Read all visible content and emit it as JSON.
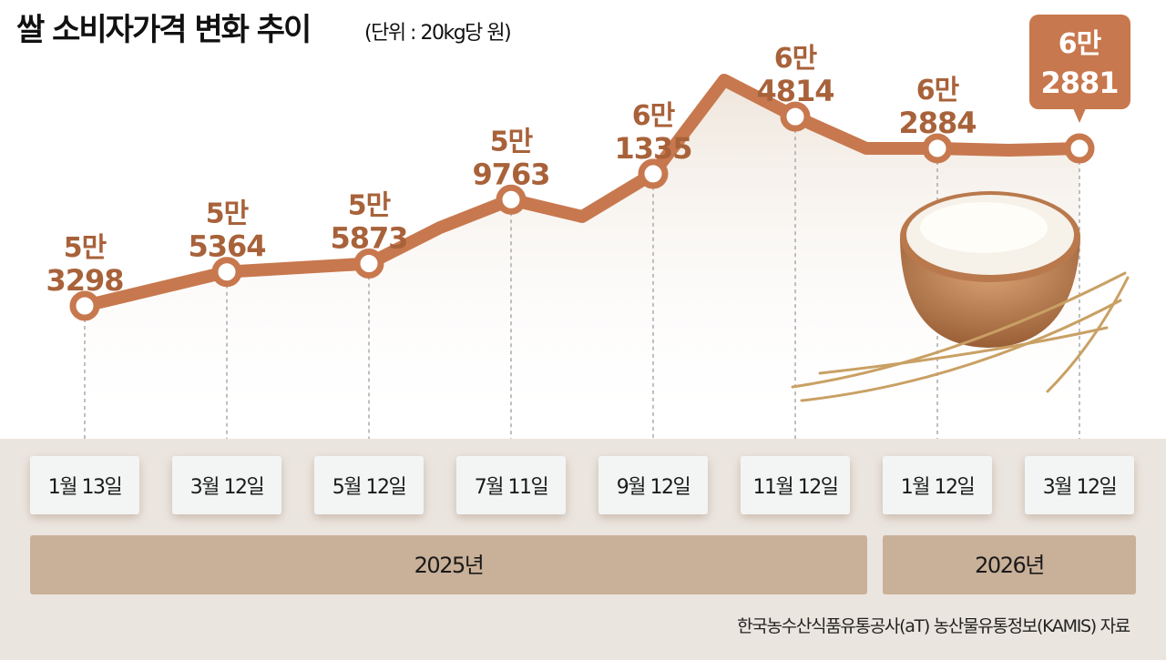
{
  "title": "쌀 소비자가격 변화 추이",
  "unit": "(단위 : 20kg당 원)",
  "source": "한국농수산식품유통공사(aT) 농산물유통정보(KAMIS) 자료",
  "colors": {
    "line": "#c8784e",
    "label": "#a8623a",
    "callout": "#c8784e",
    "band": "#ebe5df",
    "year_bar": "#c9b098",
    "date_box": "#f3f5f5"
  },
  "chart_data": {
    "type": "line",
    "title": "쌀 소비자가격 변화 추이",
    "ylabel": "20kg당 원",
    "categories": [
      "1월 13일",
      "3월 12일",
      "5월 12일",
      "7월 11일",
      "9월 12일",
      "11월 12일",
      "1월 12일",
      "3월 12일"
    ],
    "years": [
      {
        "label": "2025년",
        "span": 6
      },
      {
        "label": "2026년",
        "span": 2
      }
    ],
    "labeled_points": [
      {
        "date": "1월 13일",
        "value": 53298,
        "man": "5만",
        "rest": "3298"
      },
      {
        "date": "3월 12일",
        "value": 55364,
        "man": "5만",
        "rest": "5364"
      },
      {
        "date": "5월 12일",
        "value": 55873,
        "man": "5만",
        "rest": "5873"
      },
      {
        "date": "7월 11일",
        "value": 59763,
        "man": "5만",
        "rest": "9763"
      },
      {
        "date": "9월 12일",
        "value": 61335,
        "man": "6만",
        "rest": "1335"
      },
      {
        "date": "11월 12일",
        "value": 64814,
        "man": "6만",
        "rest": "4814"
      },
      {
        "date": "1월 12일",
        "value": 62884,
        "man": "6만",
        "rest": "2884"
      },
      {
        "date": "3월 12일",
        "value": 62881,
        "man": "6만",
        "rest": "2881",
        "highlight": true
      }
    ],
    "line_series": [
      {
        "i": 0,
        "value": 53298
      },
      {
        "i": 1,
        "value": 55364
      },
      {
        "i": 2,
        "value": 55873
      },
      {
        "i": 2.5,
        "value": 58060
      },
      {
        "i": 3,
        "value": 59763
      },
      {
        "i": 3.5,
        "value": 58730
      },
      {
        "i": 4,
        "value": 61335
      },
      {
        "i": 4.5,
        "value": 67040
      },
      {
        "i": 5,
        "value": 64814
      },
      {
        "i": 5.5,
        "value": 62880
      },
      {
        "i": 6,
        "value": 62884
      },
      {
        "i": 6.5,
        "value": 62770
      },
      {
        "i": 7,
        "value": 62881
      }
    ]
  }
}
